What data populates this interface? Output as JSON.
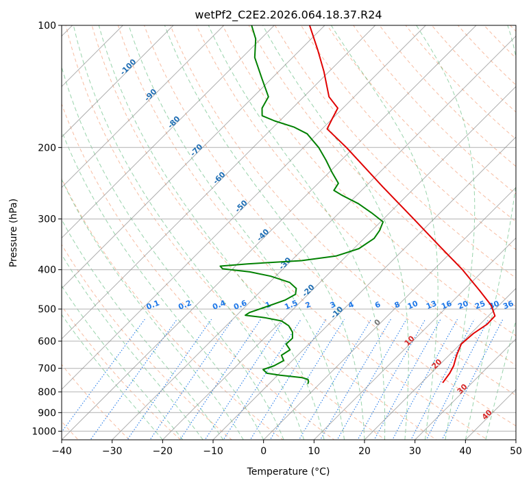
{
  "chart_data": {
    "type": "line",
    "title": "wetPf2_C2E2.2026.064.18.37.R24",
    "xlabel": "Temperature (°C)",
    "ylabel": "Pressure (hPa)",
    "xlim": [
      -40,
      50
    ],
    "ylim": [
      1050,
      100
    ],
    "y_scale": "log",
    "grid": true,
    "x_ticks": [
      -40,
      -30,
      -20,
      -10,
      0,
      10,
      20,
      30,
      40,
      50
    ],
    "y_ticks": [
      100,
      200,
      300,
      400,
      500,
      600,
      700,
      800,
      900,
      1000
    ],
    "skew": "45°",
    "colors": {
      "temperature": "#e00000",
      "dewpoint": "#008000",
      "isotherm": "#8c8c8c",
      "dry_adiabat": "#f4a582",
      "moist_adiabat": "#1b9e44",
      "mixing_ratio": "#1f78e8",
      "label_blue": "#1f6eb4",
      "label_red": "#d62728"
    },
    "series": [
      {
        "role": "temperature",
        "points": [
          {
            "p": 760,
            "t": 24.2
          },
          {
            "p": 720,
            "t": 23.7
          },
          {
            "p": 690,
            "t": 23.0
          },
          {
            "p": 650,
            "t": 21.5
          },
          {
            "p": 610,
            "t": 20.2
          },
          {
            "p": 575,
            "t": 20.5
          },
          {
            "p": 545,
            "t": 21.4
          },
          {
            "p": 520,
            "t": 21.3
          },
          {
            "p": 490,
            "t": 18.5
          },
          {
            "p": 450,
            "t": 13.2
          },
          {
            "p": 400,
            "t": 5.7
          },
          {
            "p": 350,
            "t": -3.5
          },
          {
            "p": 300,
            "t": -14.0
          },
          {
            "p": 250,
            "t": -26.5
          },
          {
            "p": 200,
            "t": -41.5
          },
          {
            "p": 180,
            "t": -49.0
          },
          {
            "p": 170,
            "t": -50.0
          },
          {
            "p": 160,
            "t": -51.0
          },
          {
            "p": 150,
            "t": -55.0
          },
          {
            "p": 130,
            "t": -61.0
          },
          {
            "p": 115,
            "t": -66.5
          },
          {
            "p": 100,
            "t": -73.0
          }
        ]
      },
      {
        "role": "dewpoint",
        "points": [
          {
            "p": 765,
            "t": -2.3
          },
          {
            "p": 755,
            "t": -2.6
          },
          {
            "p": 745,
            "t": -3.2
          },
          {
            "p": 738,
            "t": -4.7
          },
          {
            "p": 728,
            "t": -9.5
          },
          {
            "p": 720,
            "t": -12.5
          },
          {
            "p": 705,
            "t": -14.0
          },
          {
            "p": 690,
            "t": -12.6
          },
          {
            "p": 670,
            "t": -11.7
          },
          {
            "p": 650,
            "t": -13.2
          },
          {
            "p": 630,
            "t": -12.6
          },
          {
            "p": 610,
            "t": -14.5
          },
          {
            "p": 590,
            "t": -14.4
          },
          {
            "p": 570,
            "t": -15.6
          },
          {
            "p": 550,
            "t": -17.6
          },
          {
            "p": 535,
            "t": -20.0
          },
          {
            "p": 525,
            "t": -24.0
          },
          {
            "p": 518,
            "t": -28.3
          },
          {
            "p": 510,
            "t": -28.0
          },
          {
            "p": 495,
            "t": -26.0
          },
          {
            "p": 475,
            "t": -23.4
          },
          {
            "p": 460,
            "t": -22.5
          },
          {
            "p": 445,
            "t": -23.5
          },
          {
            "p": 430,
            "t": -26.0
          },
          {
            "p": 415,
            "t": -31.0
          },
          {
            "p": 405,
            "t": -36.0
          },
          {
            "p": 398,
            "t": -42.0
          },
          {
            "p": 392,
            "t": -43.0
          },
          {
            "p": 387,
            "t": -38.0
          },
          {
            "p": 380,
            "t": -28.0
          },
          {
            "p": 370,
            "t": -22.0
          },
          {
            "p": 355,
            "t": -19.0
          },
          {
            "p": 335,
            "t": -18.0
          },
          {
            "p": 320,
            "t": -18.5
          },
          {
            "p": 305,
            "t": -19.5
          },
          {
            "p": 290,
            "t": -23.5
          },
          {
            "p": 275,
            "t": -28.0
          },
          {
            "p": 262,
            "t": -33.0
          },
          {
            "p": 255,
            "t": -35.5
          },
          {
            "p": 245,
            "t": -36.0
          },
          {
            "p": 230,
            "t": -39.5
          },
          {
            "p": 215,
            "t": -43.0
          },
          {
            "p": 200,
            "t": -47.0
          },
          {
            "p": 185,
            "t": -52.0
          },
          {
            "p": 178,
            "t": -56.0
          },
          {
            "p": 172,
            "t": -61.0
          },
          {
            "p": 167,
            "t": -64.5
          },
          {
            "p": 160,
            "t": -66.0
          },
          {
            "p": 150,
            "t": -67.0
          },
          {
            "p": 135,
            "t": -72.0
          },
          {
            "p": 120,
            "t": -77.5
          },
          {
            "p": 108,
            "t": -81.0
          },
          {
            "p": 100,
            "t": -84.5
          }
        ]
      }
    ],
    "isotherm_labels": [
      {
        "text": "-100",
        "t": -100
      },
      {
        "text": "-90",
        "t": -90
      },
      {
        "text": "-80",
        "t": -80
      },
      {
        "text": "-70",
        "t": -70
      },
      {
        "text": "-60",
        "t": -60
      },
      {
        "text": "-50",
        "t": -50
      },
      {
        "text": "-40",
        "t": -40
      },
      {
        "text": "-30",
        "t": -30
      },
      {
        "text": "-20",
        "t": -20
      },
      {
        "text": "-10",
        "t": -10
      },
      {
        "text": "0",
        "t": 0
      },
      {
        "text": "10",
        "t": 10
      },
      {
        "text": "20",
        "t": 20
      },
      {
        "text": "30",
        "t": 30
      },
      {
        "text": "40",
        "t": 40
      }
    ],
    "mixing_ratio_labels": [
      "0.1",
      "0.2",
      "0.4",
      "0.6",
      "1",
      "1.5",
      "2",
      "3",
      "4",
      "6",
      "8",
      "10",
      "13",
      "16",
      "20",
      "25",
      "30",
      "36"
    ]
  }
}
